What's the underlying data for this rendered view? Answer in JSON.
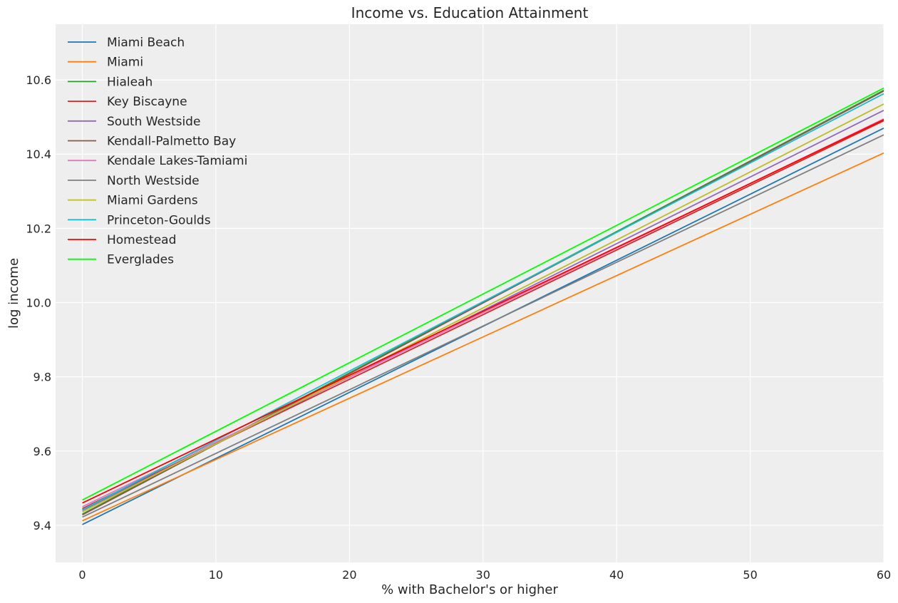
{
  "chart_data": {
    "type": "line",
    "title": "Income vs. Education Attainment",
    "xlabel": "% with Bachelor's or higher",
    "ylabel": "log income",
    "xlim": [
      -2,
      60
    ],
    "ylim": [
      9.3,
      10.75
    ],
    "xticks": [
      0,
      10,
      20,
      30,
      40,
      50,
      60
    ],
    "yticks": [
      9.4,
      9.6,
      9.8,
      10.0,
      10.2,
      10.4,
      10.6
    ],
    "ytick_labels": [
      "9.4",
      "9.6",
      "9.8",
      "10.0",
      "10.2",
      "10.4",
      "10.6"
    ],
    "grid": true,
    "legend_position": "top-left",
    "series": [
      {
        "name": "Miami Beach",
        "color": "#1f77b4",
        "x": [
          0,
          60
        ],
        "y": [
          9.402,
          10.47
        ]
      },
      {
        "name": "Miami",
        "color": "#ff7f0e",
        "x": [
          0,
          60
        ],
        "y": [
          9.412,
          10.403
        ]
      },
      {
        "name": "Hialeah",
        "color": "#2ca02c",
        "x": [
          0,
          60
        ],
        "y": [
          9.43,
          10.572
        ]
      },
      {
        "name": "Key Biscayne",
        "color": "#d62728",
        "x": [
          0,
          60
        ],
        "y": [
          9.445,
          10.49
        ]
      },
      {
        "name": "South Westside",
        "color": "#9467bd",
        "x": [
          0,
          60
        ],
        "y": [
          9.44,
          10.518
        ]
      },
      {
        "name": "Kendall-Palmetto Bay",
        "color": "#8c564b",
        "x": [
          0,
          60
        ],
        "y": [
          9.428,
          10.57
        ]
      },
      {
        "name": "Kendale Lakes-Tamiami",
        "color": "#e377c2",
        "x": [
          0,
          60
        ],
        "y": [
          9.45,
          10.495
        ]
      },
      {
        "name": "North Westside",
        "color": "#7f7f7f",
        "x": [
          0,
          60
        ],
        "y": [
          9.422,
          10.452
        ]
      },
      {
        "name": "Miami Gardens",
        "color": "#bcbd22",
        "x": [
          0,
          60
        ],
        "y": [
          9.436,
          10.535
        ]
      },
      {
        "name": "Princeton-Goulds",
        "color": "#17becf",
        "x": [
          0,
          60
        ],
        "y": [
          9.442,
          10.563
        ]
      },
      {
        "name": "Homestead",
        "color": "#ff0000",
        "x": [
          0,
          60
        ],
        "y": [
          9.46,
          10.493
        ]
      },
      {
        "name": "Everglades",
        "color": "#00ff00",
        "x": [
          0,
          60
        ],
        "y": [
          9.468,
          10.578
        ]
      }
    ]
  }
}
